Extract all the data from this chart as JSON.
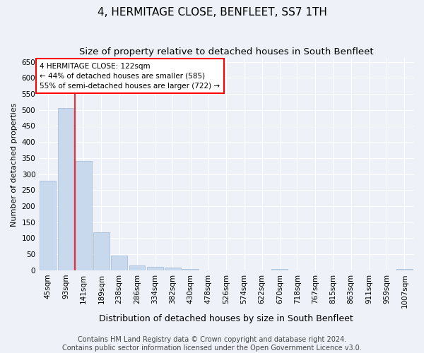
{
  "title": "4, HERMITAGE CLOSE, BENFLEET, SS7 1TH",
  "subtitle": "Size of property relative to detached houses in South Benfleet",
  "xlabel": "Distribution of detached houses by size in South Benfleet",
  "ylabel": "Number of detached properties",
  "footer_line1": "Contains HM Land Registry data © Crown copyright and database right 2024.",
  "footer_line2": "Contains public sector information licensed under the Open Government Licence v3.0.",
  "categories": [
    "45sqm",
    "93sqm",
    "141sqm",
    "189sqm",
    "238sqm",
    "286sqm",
    "334sqm",
    "382sqm",
    "430sqm",
    "478sqm",
    "526sqm",
    "574sqm",
    "622sqm",
    "670sqm",
    "718sqm",
    "767sqm",
    "815sqm",
    "863sqm",
    "911sqm",
    "959sqm",
    "1007sqm"
  ],
  "bar_values": [
    280,
    505,
    340,
    118,
    46,
    16,
    10,
    8,
    5,
    0,
    0,
    0,
    0,
    5,
    0,
    0,
    0,
    0,
    0,
    0,
    5
  ],
  "bar_color": "#c9d9ed",
  "bar_edge_color": "#a0b8d8",
  "annotation_box_text_line1": "4 HERMITAGE CLOSE: 122sqm",
  "annotation_box_text_line2": "← 44% of detached houses are smaller (585)",
  "annotation_box_text_line3": "55% of semi-detached houses are larger (722) →",
  "red_line_x": 1.5,
  "ylim": [
    0,
    660
  ],
  "yticks": [
    0,
    50,
    100,
    150,
    200,
    250,
    300,
    350,
    400,
    450,
    500,
    550,
    600,
    650
  ],
  "background_color": "#eef2f8",
  "plot_bg_color": "#eef2f8",
  "grid_color": "#ffffff",
  "title_fontsize": 11,
  "subtitle_fontsize": 9.5,
  "xlabel_fontsize": 9,
  "ylabel_fontsize": 8,
  "tick_fontsize": 7.5,
  "annotation_fontsize": 7.5,
  "footer_fontsize": 7
}
